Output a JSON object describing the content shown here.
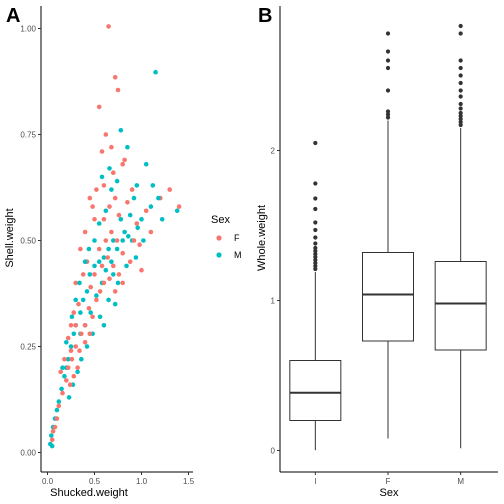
{
  "panels": {
    "a_tag": "A",
    "b_tag": "B"
  },
  "chart_data": [
    {
      "type": "scatter",
      "panel": "A",
      "xlabel": "Shucked.weight",
      "ylabel": "Shell.weight",
      "xlim": [
        0,
        1.5
      ],
      "ylim": [
        0,
        1.0
      ],
      "xticks": [
        "0.0",
        "0.5",
        "1.0",
        "1.5"
      ],
      "yticks": [
        "0.00",
        "0.25",
        "0.50",
        "0.75",
        "1.00"
      ],
      "grid": false,
      "legend": {
        "title": "Sex",
        "placement": "right",
        "entries": [
          {
            "label": "F",
            "color": "#F8766D"
          },
          {
            "label": "M",
            "color": "#00BFC4"
          }
        ]
      },
      "series": [
        {
          "name": "F",
          "color": "#F8766D",
          "points": [
            [
              0.65,
              1.005
            ],
            [
              0.72,
              0.885
            ],
            [
              0.75,
              0.855
            ],
            [
              0.55,
              0.815
            ],
            [
              0.62,
              0.75
            ],
            [
              0.58,
              0.71
            ],
            [
              0.68,
              0.72
            ],
            [
              0.8,
              0.68
            ],
            [
              0.7,
              0.66
            ],
            [
              0.6,
              0.63
            ],
            [
              0.82,
              0.69
            ],
            [
              0.9,
              0.62
            ],
            [
              0.52,
              0.62
            ],
            [
              0.48,
              0.58
            ],
            [
              0.5,
              0.55
            ],
            [
              0.45,
              0.6
            ],
            [
              0.4,
              0.52
            ],
            [
              0.35,
              0.48
            ],
            [
              0.6,
              0.55
            ],
            [
              0.66,
              0.58
            ],
            [
              0.72,
              0.6
            ],
            [
              0.76,
              0.56
            ],
            [
              0.85,
              0.59
            ],
            [
              0.95,
              0.54
            ],
            [
              1.05,
              0.57
            ],
            [
              1.1,
              0.52
            ],
            [
              1.2,
              0.6
            ],
            [
              1.3,
              0.62
            ],
            [
              1.4,
              0.58
            ],
            [
              0.42,
              0.45
            ],
            [
              0.38,
              0.42
            ],
            [
              0.3,
              0.4
            ],
            [
              0.33,
              0.35
            ],
            [
              0.28,
              0.33
            ],
            [
              0.25,
              0.3
            ],
            [
              0.22,
              0.27
            ],
            [
              0.55,
              0.48
            ],
            [
              0.62,
              0.5
            ],
            [
              0.68,
              0.52
            ],
            [
              0.74,
              0.5
            ],
            [
              0.8,
              0.47
            ],
            [
              0.58,
              0.44
            ],
            [
              0.5,
              0.42
            ],
            [
              0.46,
              0.39
            ],
            [
              0.64,
              0.46
            ],
            [
              0.7,
              0.44
            ],
            [
              0.76,
              0.42
            ],
            [
              0.52,
              0.36
            ],
            [
              0.44,
              0.34
            ],
            [
              0.4,
              0.3
            ],
            [
              0.36,
              0.28
            ],
            [
              0.3,
              0.25
            ],
            [
              0.26,
              0.22
            ],
            [
              0.22,
              0.2
            ],
            [
              0.2,
              0.17
            ],
            [
              0.16,
              0.14
            ],
            [
              0.12,
              0.11
            ],
            [
              0.1,
              0.08
            ],
            [
              0.34,
              0.24
            ],
            [
              0.48,
              0.32
            ],
            [
              0.56,
              0.38
            ],
            [
              0.6,
              0.4
            ],
            [
              0.66,
              0.41
            ],
            [
              0.72,
              0.38
            ],
            [
              0.8,
              0.4
            ],
            [
              0.88,
              0.45
            ],
            [
              0.92,
              0.5
            ],
            [
              0.98,
              0.49
            ],
            [
              1.0,
              0.43
            ],
            [
              0.3,
              0.3
            ],
            [
              0.25,
              0.24
            ],
            [
              0.32,
              0.2
            ],
            [
              0.18,
              0.22
            ],
            [
              0.14,
              0.19
            ],
            [
              0.4,
              0.26
            ],
            [
              0.45,
              0.28
            ],
            [
              0.28,
              0.18
            ],
            [
              0.24,
              0.16
            ],
            [
              0.08,
              0.06
            ],
            [
              0.06,
              0.05
            ],
            [
              0.05,
              0.03
            ]
          ]
        },
        {
          "name": "M",
          "color": "#00BFC4",
          "points": [
            [
              1.15,
              0.897
            ],
            [
              0.78,
              0.76
            ],
            [
              0.85,
              0.72
            ],
            [
              1.05,
              0.68
            ],
            [
              0.95,
              0.63
            ],
            [
              1.12,
              0.63
            ],
            [
              1.22,
              0.55
            ],
            [
              0.92,
              0.6
            ],
            [
              0.88,
              0.56
            ],
            [
              0.82,
              0.52
            ],
            [
              0.78,
              0.55
            ],
            [
              0.7,
              0.5
            ],
            [
              0.65,
              0.48
            ],
            [
              0.6,
              0.46
            ],
            [
              0.55,
              0.45
            ],
            [
              0.5,
              0.44
            ],
            [
              0.45,
              0.42
            ],
            [
              0.42,
              0.38
            ],
            [
              0.38,
              0.36
            ],
            [
              0.35,
              0.33
            ],
            [
              0.3,
              0.3
            ],
            [
              0.28,
              0.28
            ],
            [
              0.25,
              0.25
            ],
            [
              0.22,
              0.22
            ],
            [
              0.2,
              0.2
            ],
            [
              0.18,
              0.18
            ],
            [
              0.15,
              0.15
            ],
            [
              0.12,
              0.12
            ],
            [
              0.1,
              0.1
            ],
            [
              0.08,
              0.08
            ],
            [
              0.06,
              0.06
            ],
            [
              0.04,
              0.04
            ],
            [
              0.03,
              0.02
            ],
            [
              0.05,
              0.015
            ],
            [
              0.35,
              0.28
            ],
            [
              0.4,
              0.3
            ],
            [
              0.46,
              0.33
            ],
            [
              0.52,
              0.37
            ],
            [
              0.58,
              0.4
            ],
            [
              0.62,
              0.43
            ],
            [
              0.68,
              0.45
            ],
            [
              0.74,
              0.48
            ],
            [
              0.8,
              0.5
            ],
            [
              0.86,
              0.51
            ],
            [
              0.9,
              0.5
            ],
            [
              0.96,
              0.53
            ],
            [
              1.0,
              0.55
            ],
            [
              1.1,
              0.58
            ],
            [
              1.18,
              0.6
            ],
            [
              1.38,
              0.57
            ],
            [
              0.72,
              0.35
            ],
            [
              0.65,
              0.36
            ],
            [
              0.56,
              0.32
            ],
            [
              0.48,
              0.28
            ],
            [
              0.42,
              0.25
            ],
            [
              0.36,
              0.22
            ],
            [
              0.32,
              0.19
            ],
            [
              0.27,
              0.16
            ],
            [
              0.23,
              0.13
            ],
            [
              0.6,
              0.3
            ],
            [
              0.7,
              0.42
            ],
            [
              0.75,
              0.4
            ],
            [
              0.84,
              0.44
            ],
            [
              0.94,
              0.46
            ],
            [
              1.02,
              0.5
            ],
            [
              0.5,
              0.5
            ],
            [
              0.44,
              0.48
            ],
            [
              0.3,
              0.36
            ],
            [
              0.26,
              0.32
            ],
            [
              0.2,
              0.26
            ],
            [
              0.16,
              0.2
            ],
            [
              0.34,
              0.4
            ],
            [
              0.4,
              0.45
            ],
            [
              0.55,
              0.54
            ],
            [
              0.62,
              0.57
            ],
            [
              0.68,
              0.62
            ],
            [
              0.74,
              0.64
            ],
            [
              0.66,
              0.67
            ],
            [
              0.58,
              0.65
            ]
          ]
        }
      ]
    },
    {
      "type": "box",
      "panel": "B",
      "xlabel": "Sex",
      "ylabel": "Whole.weight",
      "ylim": [
        -0.1,
        2.95
      ],
      "yticks": [
        "0",
        "1",
        "2"
      ],
      "grid": false,
      "categories": [
        "I",
        "F",
        "M"
      ],
      "boxes": [
        {
          "category": "I",
          "min": 0.002,
          "q1": 0.2,
          "median": 0.385,
          "q3": 0.6,
          "max": 1.19,
          "outliers": [
            1.21,
            1.23,
            1.25,
            1.27,
            1.29,
            1.31,
            1.33,
            1.35,
            1.38,
            1.42,
            1.47,
            1.52,
            1.61,
            1.68,
            1.78,
            2.05
          ]
        },
        {
          "category": "F",
          "min": 0.08,
          "q1": 0.73,
          "median": 1.04,
          "q3": 1.32,
          "max": 2.2,
          "outliers": [
            2.22,
            2.24,
            2.26,
            2.4,
            2.55,
            2.6,
            2.66,
            2.78
          ]
        },
        {
          "category": "M",
          "min": 0.015,
          "q1": 0.67,
          "median": 0.98,
          "q3": 1.26,
          "max": 2.15,
          "outliers": [
            2.17,
            2.19,
            2.21,
            2.23,
            2.25,
            2.28,
            2.31,
            2.36,
            2.4,
            2.45,
            2.5,
            2.55,
            2.6,
            2.78,
            2.83
          ]
        }
      ]
    }
  ]
}
